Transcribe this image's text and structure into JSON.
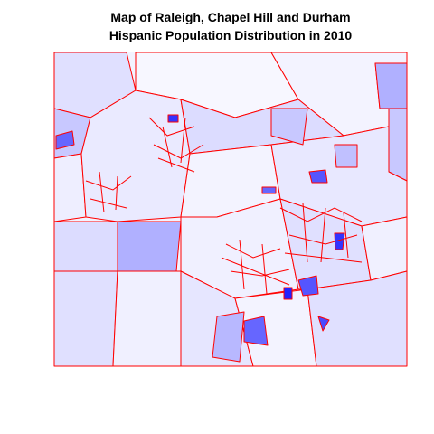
{
  "title": {
    "line1": "Map of Raleigh, Chapel Hill and Durham",
    "line2": "Hispanic Population Distribution in 2010"
  }
}
